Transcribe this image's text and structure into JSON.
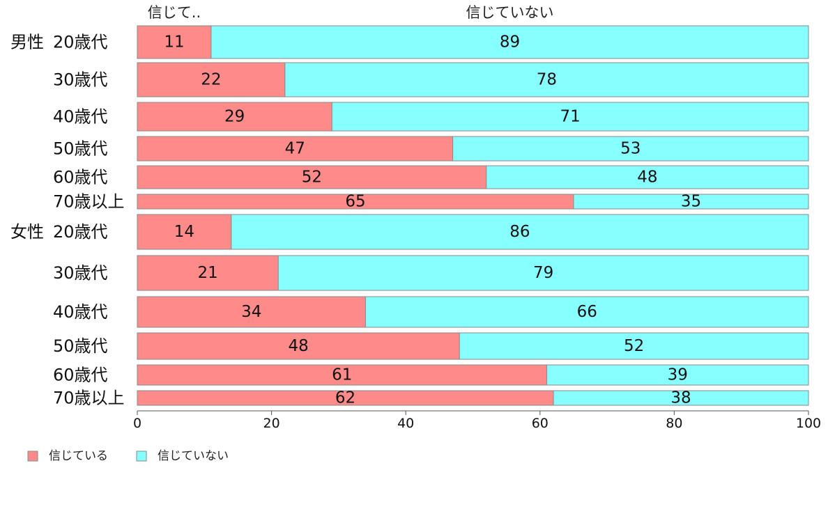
{
  "chart_data": {
    "type": "bar",
    "orientation": "horizontal",
    "stacked": true,
    "normalized": true,
    "column_headers": [
      "信じて..",
      "信じていない"
    ],
    "groups": [
      {
        "label": "男性",
        "rows": [
          {
            "label": "20歳代",
            "values": [
              11,
              89
            ]
          },
          {
            "label": "30歳代",
            "values": [
              22,
              78
            ]
          },
          {
            "label": "40歳代",
            "values": [
              29,
              71
            ]
          },
          {
            "label": "50歳代",
            "values": [
              47,
              53
            ]
          },
          {
            "label": "60歳代",
            "values": [
              52,
              48
            ]
          },
          {
            "label": "70歳以上",
            "values": [
              65,
              35
            ]
          }
        ]
      },
      {
        "label": "女性",
        "rows": [
          {
            "label": "20歳代",
            "values": [
              14,
              86
            ]
          },
          {
            "label": "30歳代",
            "values": [
              21,
              79
            ]
          },
          {
            "label": "40歳代",
            "values": [
              34,
              66
            ]
          },
          {
            "label": "50歳代",
            "values": [
              48,
              52
            ]
          },
          {
            "label": "60歳代",
            "values": [
              61,
              39
            ]
          },
          {
            "label": "70歳以上",
            "values": [
              62,
              38
            ]
          }
        ]
      }
    ],
    "series": [
      {
        "name": "信じている",
        "color": "#ff8a8a"
      },
      {
        "name": "信じていない",
        "color": "#88ffff"
      }
    ],
    "xlim": [
      0,
      100
    ],
    "xticks": [
      0,
      20,
      40,
      60,
      80,
      100
    ],
    "grid": false,
    "legend_position": "bottom-left"
  }
}
